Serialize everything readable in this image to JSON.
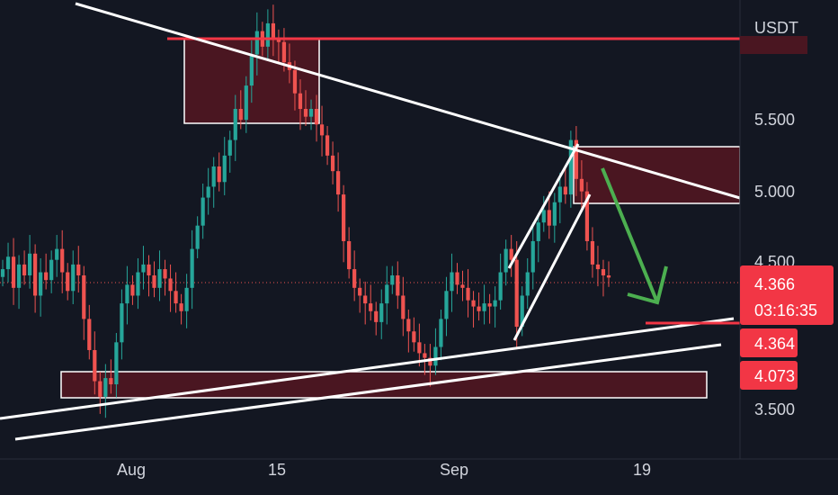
{
  "chart_data": {
    "type": "candlestick",
    "currency": "USDT",
    "y_ticks": [
      "5.500",
      "5.000",
      "4.500",
      "3.500"
    ],
    "y_tick_values": [
      5.5,
      5.0,
      4.5,
      3.5
    ],
    "ylim": [
      3.2,
      6.15
    ],
    "x_ticks": [
      "Aug",
      "15",
      "Sep",
      "19"
    ],
    "last_price": "4.366",
    "countdown": "03:16:35",
    "level_a": "4.364",
    "level_b": "4.073",
    "colors": {
      "background": "#131722",
      "up": "#26a69a",
      "down": "#ef5350",
      "last_price_tag": "#f23645",
      "level_tag": "#f23645",
      "zone_fill": "#4a1621",
      "trendline": "#ffffff",
      "arrow": "#4caf50",
      "resistance_line": "#f23645"
    },
    "series": [
      {
        "name": "",
        "points": [
          [
            0,
            4.42
          ],
          [
            1,
            4.5
          ],
          [
            2,
            4.3
          ],
          [
            3,
            4.45
          ],
          [
            4,
            4.38
          ],
          [
            5,
            4.52
          ],
          [
            6,
            4.25
          ],
          [
            7,
            4.4
          ],
          [
            8,
            4.35
          ],
          [
            9,
            4.48
          ],
          [
            10,
            4.55
          ],
          [
            11,
            4.4
          ],
          [
            12,
            4.28
          ],
          [
            13,
            4.45
          ],
          [
            14,
            4.38
          ],
          [
            15,
            4.1
          ],
          [
            16,
            3.9
          ],
          [
            17,
            3.7
          ],
          [
            18,
            3.6
          ],
          [
            19,
            3.72
          ],
          [
            20,
            3.68
          ],
          [
            21,
            3.95
          ],
          [
            22,
            4.2
          ],
          [
            23,
            4.32
          ],
          [
            24,
            4.25
          ],
          [
            25,
            4.4
          ],
          [
            26,
            4.45
          ],
          [
            27,
            4.38
          ],
          [
            28,
            4.3
          ],
          [
            29,
            4.42
          ],
          [
            30,
            4.36
          ],
          [
            31,
            4.28
          ],
          [
            32,
            4.2
          ],
          [
            33,
            4.15
          ],
          [
            34,
            4.3
          ],
          [
            35,
            4.55
          ],
          [
            36,
            4.7
          ],
          [
            37,
            4.88
          ],
          [
            38,
            4.95
          ],
          [
            39,
            5.08
          ],
          [
            40,
            4.98
          ],
          [
            41,
            5.15
          ],
          [
            42,
            5.25
          ],
          [
            43,
            5.45
          ],
          [
            44,
            5.38
          ],
          [
            45,
            5.6
          ],
          [
            46,
            5.8
          ],
          [
            47,
            5.95
          ],
          [
            48,
            5.85
          ],
          [
            49,
            6.0
          ],
          [
            50,
            5.9
          ],
          [
            51,
            5.88
          ],
          [
            52,
            5.75
          ],
          [
            53,
            5.7
          ],
          [
            54,
            5.55
          ],
          [
            55,
            5.45
          ],
          [
            56,
            5.4
          ],
          [
            57,
            5.45
          ],
          [
            58,
            5.35
          ],
          [
            59,
            5.28
          ],
          [
            60,
            5.15
          ],
          [
            61,
            5.05
          ],
          [
            62,
            4.9
          ],
          [
            63,
            4.6
          ],
          [
            64,
            4.42
          ],
          [
            65,
            4.3
          ],
          [
            66,
            4.25
          ],
          [
            67,
            4.2
          ],
          [
            68,
            4.15
          ],
          [
            69,
            4.08
          ],
          [
            70,
            4.2
          ],
          [
            71,
            4.32
          ],
          [
            72,
            4.38
          ],
          [
            73,
            4.25
          ],
          [
            74,
            4.1
          ],
          [
            75,
            4.02
          ],
          [
            76,
            3.95
          ],
          [
            77,
            3.88
          ],
          [
            78,
            3.85
          ],
          [
            79,
            3.8
          ],
          [
            80,
            3.92
          ],
          [
            81,
            4.1
          ],
          [
            82,
            4.28
          ],
          [
            83,
            4.4
          ],
          [
            84,
            4.32
          ],
          [
            85,
            4.3
          ],
          [
            86,
            4.22
          ],
          [
            87,
            4.18
          ],
          [
            88,
            4.15
          ],
          [
            89,
            4.2
          ],
          [
            90,
            4.18
          ],
          [
            91,
            4.22
          ],
          [
            92,
            4.4
          ],
          [
            93,
            4.55
          ],
          [
            94,
            4.48
          ],
          [
            95,
            4.05
          ],
          [
            96,
            4.25
          ],
          [
            97,
            4.4
          ],
          [
            98,
            4.6
          ],
          [
            99,
            4.72
          ],
          [
            100,
            4.8
          ],
          [
            101,
            4.7
          ],
          [
            102,
            4.85
          ],
          [
            103,
            4.95
          ],
          [
            104,
            4.9
          ],
          [
            105,
            5.25
          ],
          [
            106,
            5.0
          ],
          [
            107,
            4.92
          ],
          [
            108,
            4.6
          ],
          [
            109,
            4.45
          ],
          [
            110,
            4.42
          ],
          [
            111,
            4.38
          ],
          [
            112,
            4.366
          ]
        ]
      }
    ]
  }
}
